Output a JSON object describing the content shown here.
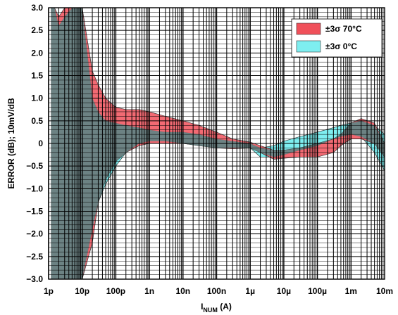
{
  "chart_data": {
    "type": "area",
    "title": "",
    "xlabel": "I",
    "xlabel_sub": "NUM",
    "xlabel_suffix": " (A)",
    "ylabel": "ERROR (dB); 10mV/dB",
    "xscale": "log",
    "xlim": [
      1e-12,
      0.01
    ],
    "ylim": [
      -3.0,
      3.0
    ],
    "grid": true,
    "legend_position": "top-right",
    "x_ticks": [
      1e-12,
      1e-11,
      1e-10,
      1e-09,
      1e-08,
      1e-07,
      1e-06,
      1e-05,
      0.0001,
      0.001,
      0.01
    ],
    "x_tick_labels": [
      "1p",
      "10p",
      "100p",
      "1n",
      "10n",
      "100n",
      "1µ",
      "10µ",
      "100µ",
      "1m",
      "10m"
    ],
    "y_ticks": [
      -3.0,
      -2.5,
      -2.0,
      -1.5,
      -1.0,
      -0.5,
      0,
      0.5,
      1.0,
      1.5,
      2.0,
      2.5,
      3.0
    ],
    "y_tick_labels": [
      "−3.0",
      "−2.5",
      "−2.0",
      "−1.5",
      "−1.0",
      "−0.5",
      "0",
      "0.5",
      "1.0",
      "1.5",
      "2.0",
      "2.5",
      "3.0"
    ],
    "series": [
      {
        "name": "±3σ 70°C",
        "color": "#f0505a",
        "x": [
          1.2e-12,
          1.5e-12,
          2e-12,
          3e-12,
          5e-12,
          7e-12,
          1e-11,
          2e-11,
          3e-11,
          5e-11,
          1e-10,
          2e-10,
          5e-10,
          1e-09,
          3e-09,
          1e-08,
          3e-08,
          1e-07,
          3e-07,
          1e-06,
          2e-06,
          5e-06,
          1e-05,
          3e-05,
          0.0001,
          0.0003,
          0.0005,
          0.001,
          0.002,
          0.005,
          0.01
        ],
        "upper": [
          3.0,
          3.0,
          2.8,
          3.0,
          3.0,
          3.0,
          3.0,
          1.6,
          1.3,
          1.0,
          0.8,
          0.75,
          0.75,
          0.7,
          0.6,
          0.5,
          0.4,
          0.25,
          0.1,
          0.03,
          -0.05,
          -0.15,
          -0.15,
          -0.1,
          0.0,
          0.1,
          0.2,
          0.45,
          0.55,
          0.45,
          0.0
        ],
        "lower": [
          -3.0,
          -3.0,
          -3.0,
          -3.0,
          -3.0,
          -3.0,
          -3.0,
          -2.2,
          -1.3,
          -0.8,
          -0.4,
          -0.2,
          -0.05,
          0.0,
          0.0,
          0.0,
          -0.05,
          -0.1,
          -0.12,
          -0.1,
          -0.2,
          -0.35,
          -0.33,
          -0.3,
          -0.3,
          -0.2,
          -0.05,
          0.1,
          0.1,
          0.0,
          -0.3
        ]
      },
      {
        "name": "±3σ 0°C",
        "color": "#7eeef0",
        "x": [
          1.2e-12,
          1.5e-12,
          2e-12,
          3e-12,
          5e-12,
          7e-12,
          1e-11,
          2e-11,
          3e-11,
          5e-11,
          1e-10,
          2e-10,
          5e-10,
          1e-09,
          3e-09,
          1e-08,
          3e-08,
          1e-07,
          3e-07,
          1e-06,
          2e-06,
          5e-06,
          1e-05,
          3e-05,
          0.0001,
          0.0003,
          0.0005,
          0.001,
          0.002,
          0.005,
          0.01
        ],
        "upper": [
          3.0,
          3.0,
          2.6,
          2.8,
          3.0,
          3.0,
          3.0,
          1.0,
          0.7,
          0.5,
          0.45,
          0.4,
          0.35,
          0.3,
          0.25,
          0.25,
          0.2,
          0.1,
          0.05,
          0.0,
          -0.1,
          -0.05,
          0.05,
          0.15,
          0.25,
          0.35,
          0.4,
          0.45,
          0.5,
          0.4,
          0.2
        ],
        "lower": [
          -3.0,
          -3.0,
          -3.0,
          -3.0,
          -3.0,
          -3.0,
          -3.0,
          -1.9,
          -1.3,
          -0.9,
          -0.5,
          -0.2,
          0.0,
          0.05,
          0.05,
          0.0,
          -0.05,
          -0.1,
          -0.1,
          -0.1,
          -0.3,
          -0.3,
          -0.25,
          -0.15,
          -0.05,
          0.1,
          0.15,
          0.2,
          0.15,
          -0.2,
          -0.6
        ]
      }
    ]
  }
}
